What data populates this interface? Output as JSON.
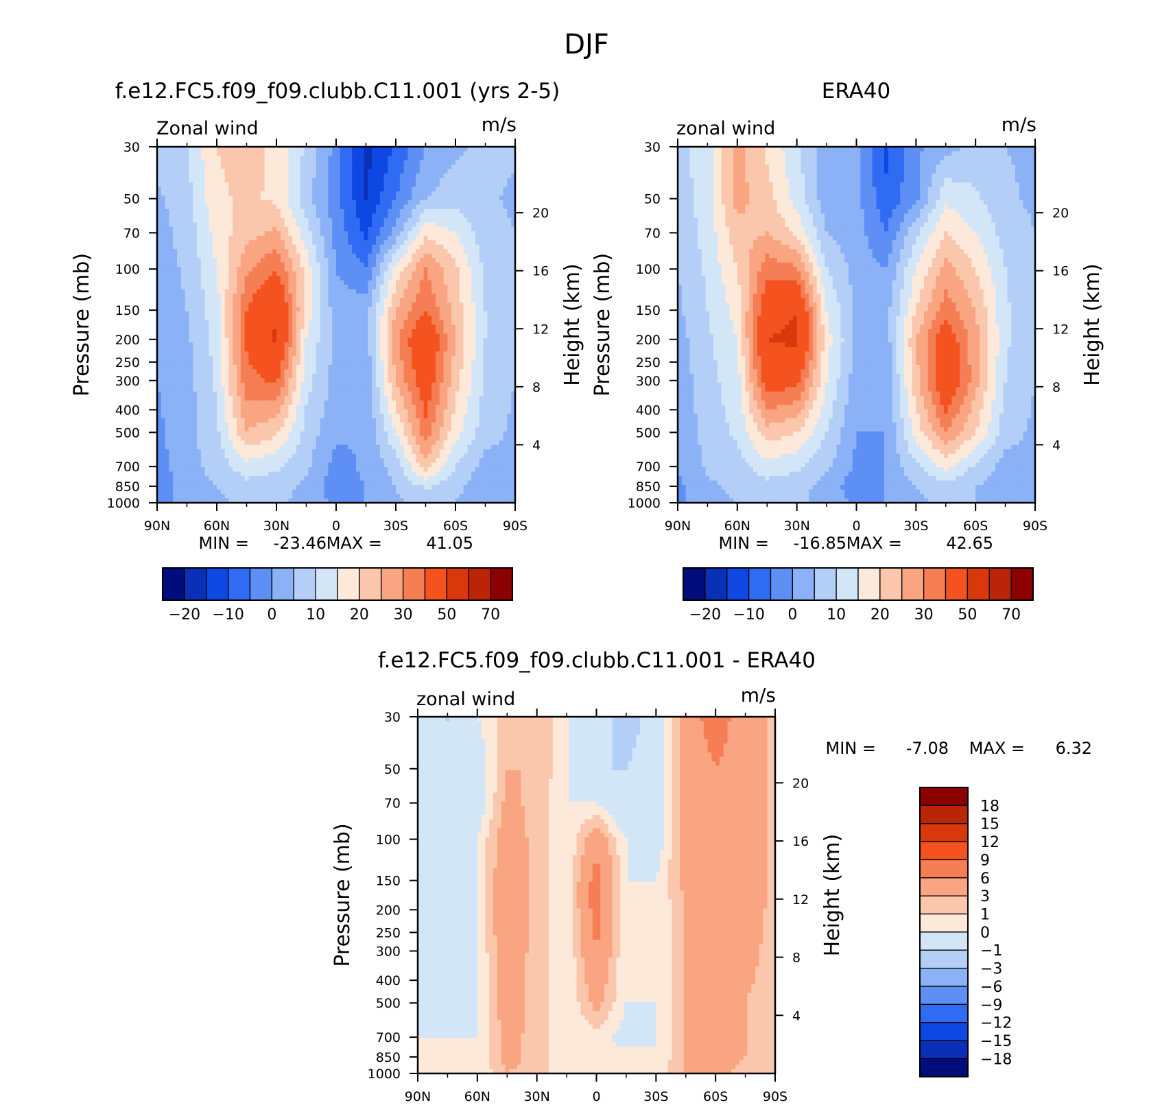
{
  "page_title": "DJF",
  "colors": {
    "warm": [
      "#fde9da",
      "#fbc7ac",
      "#f9a582",
      "#f67e54",
      "#f4531f",
      "#d8380c",
      "#b92506",
      "#8b0000"
    ],
    "cool": [
      "#d2e6f8",
      "#b4cff7",
      "#8bb1f6",
      "#5d8ff5",
      "#2f6bf3",
      "#0f47e3",
      "#0a30b8",
      "#000d7a"
    ],
    "missing": "#ffffff"
  },
  "chart_data": [
    {
      "type": "heatmap",
      "panel": "model",
      "title": "f.e12.FC5.f09_f09.clubb.C11.001 (yrs 2-5)",
      "left_label": "Zonal wind",
      "unit_label": "m/s",
      "ylabel": "Pressure (mb)",
      "y2label": "Height (km)",
      "x_ticks": [
        "90N",
        "60N",
        "30N",
        "0",
        "30S",
        "60S",
        "90S"
      ],
      "y_ticks": [
        30,
        50,
        70,
        100,
        150,
        200,
        250,
        300,
        400,
        500,
        700,
        850,
        1000
      ],
      "y2_ticks": [
        20,
        16,
        12,
        8,
        4
      ],
      "xlim": [
        90,
        -90
      ],
      "ylim": [
        1000,
        30
      ],
      "y_scale": "log",
      "stats": {
        "min_label": "MIN =",
        "min": "-23.46",
        "max_label": "MAX =",
        "max": "41.05"
      },
      "field": {
        "lat": [
          90,
          75,
          60,
          45,
          30,
          15,
          0,
          -15,
          -30,
          -45,
          -60,
          -75,
          -90
        ],
        "pressure": [
          30,
          50,
          70,
          100,
          150,
          200,
          300,
          500,
          700,
          850,
          1000
        ],
        "values": [
          [
            2,
            5,
            15,
            17,
            14,
            4,
            -7,
            -22,
            -14,
            -5,
            -1,
            1,
            1
          ],
          [
            -1,
            3,
            14,
            16,
            14,
            2,
            -8,
            -20,
            -10,
            0,
            3,
            1,
            -1
          ],
          [
            -2,
            2,
            12,
            18,
            21,
            7,
            -7,
            -16,
            -3,
            14,
            10,
            2,
            0
          ],
          [
            -3,
            1,
            10,
            24,
            30,
            13,
            -5,
            -10,
            12,
            25,
            16,
            4,
            0
          ],
          [
            -4,
            0,
            8,
            30,
            40,
            13,
            -3,
            -2,
            20,
            30,
            18,
            5,
            0
          ],
          [
            -5,
            -1,
            7,
            31,
            41,
            10,
            -2,
            -3,
            24,
            38,
            20,
            5,
            0
          ],
          [
            -5,
            -2,
            6,
            28,
            31,
            7,
            -2,
            -4,
            20,
            35,
            17,
            4,
            0
          ],
          [
            -6,
            -2,
            4,
            20,
            16,
            3,
            -4,
            -5,
            10,
            28,
            12,
            2,
            -1
          ],
          [
            -7,
            -2,
            2,
            8,
            6,
            1,
            -7,
            -4,
            2,
            18,
            5,
            -2,
            -1
          ],
          [
            -8,
            -3,
            0,
            3,
            2,
            -1,
            -8,
            -5,
            0,
            6,
            1,
            -3,
            -1
          ],
          [
            -8,
            -3,
            -1,
            1,
            1,
            -2,
            -6,
            -5,
            -1,
            2,
            0,
            -2,
            -1
          ]
        ]
      }
    },
    {
      "type": "heatmap",
      "panel": "obs",
      "title": "ERA40",
      "left_label": "zonal wind",
      "unit_label": "m/s",
      "ylabel": "Pressure (mb)",
      "y2label": "Height (km)",
      "x_ticks": [
        "90N",
        "60N",
        "30N",
        "0",
        "30S",
        "60S",
        "90S"
      ],
      "y_ticks": [
        30,
        50,
        70,
        100,
        150,
        200,
        250,
        300,
        400,
        500,
        700,
        850,
        1000
      ],
      "y2_ticks": [
        20,
        16,
        12,
        8,
        4
      ],
      "xlim": [
        90,
        -90
      ],
      "ylim": [
        1000,
        30
      ],
      "y_scale": "log",
      "stats": {
        "min_label": "MIN =",
        "min": "-16.85",
        "max_label": "MAX =",
        "max": "42.65"
      },
      "field": {
        "lat": [
          90,
          75,
          60,
          45,
          30,
          15,
          0,
          -15,
          -30,
          -45,
          -60,
          -75,
          -90
        ],
        "pressure": [
          30,
          50,
          70,
          100,
          150,
          200,
          300,
          500,
          700,
          850,
          1000
        ],
        "values": [
          [
            3,
            8,
            22,
            14,
            6,
            -3,
            -4,
            -16,
            -6,
            -2,
            2,
            0,
            -1
          ],
          [
            2,
            8,
            22,
            17,
            8,
            -3,
            -3,
            -14,
            -6,
            9,
            6,
            1,
            -1
          ],
          [
            1,
            7,
            18,
            20,
            14,
            0,
            -3,
            -10,
            4,
            15,
            10,
            3,
            0
          ],
          [
            0,
            6,
            15,
            28,
            26,
            5,
            -2,
            -5,
            10,
            22,
            15,
            5,
            0
          ],
          [
            -1,
            5,
            12,
            36,
            40,
            10,
            -1,
            -2,
            15,
            28,
            20,
            6,
            0
          ],
          [
            -2,
            4,
            10,
            40,
            42,
            12,
            -1,
            -3,
            20,
            35,
            22,
            6,
            0
          ],
          [
            -3,
            3,
            8,
            34,
            32,
            10,
            -3,
            -4,
            18,
            38,
            22,
            5,
            0
          ],
          [
            -4,
            2,
            6,
            18,
            15,
            5,
            -5,
            -5,
            12,
            25,
            15,
            2,
            -1
          ],
          [
            -5,
            1,
            3,
            8,
            6,
            1,
            -6,
            -5,
            4,
            12,
            4,
            -2,
            -1
          ],
          [
            -6,
            -1,
            1,
            3,
            2,
            -2,
            -8,
            -5,
            0,
            3,
            0,
            -2,
            -1
          ],
          [
            -6,
            -1,
            0,
            1,
            1,
            -2,
            -6,
            -5,
            -1,
            1,
            0,
            -1,
            -1
          ]
        ]
      }
    },
    {
      "type": "heatmap",
      "panel": "diff",
      "title": "f.e12.FC5.f09_f09.clubb.C11.001 - ERA40",
      "left_label": "zonal wind",
      "unit_label": "m/s",
      "ylabel": "Pressure (mb)",
      "y2label": "Height (km)",
      "x_ticks": [
        "90N",
        "60N",
        "30N",
        "0",
        "30S",
        "60S",
        "90S"
      ],
      "y_ticks": [
        30,
        50,
        70,
        100,
        150,
        200,
        250,
        300,
        400,
        500,
        700,
        850,
        1000
      ],
      "y2_ticks": [
        20,
        16,
        12,
        8,
        4
      ],
      "xlim": [
        90,
        -90
      ],
      "ylim": [
        1000,
        30
      ],
      "y_scale": "log",
      "stats": {
        "min_label": "MIN =",
        "min": "-7.08",
        "max_label": "MAX =",
        "max": "6.32"
      },
      "field": {
        "lat": [
          90,
          75,
          60,
          45,
          30,
          15,
          0,
          -15,
          -30,
          -45,
          -60,
          -75,
          -90
        ],
        "pressure": [
          30,
          50,
          70,
          100,
          150,
          200,
          300,
          500,
          700,
          850,
          1000
        ],
        "values": [
          [
            -1,
            -3,
            -1,
            0.5,
            1,
            -1,
            -2,
            -4,
            -2,
            2,
            4,
            2,
            0.5
          ],
          [
            -2,
            -3,
            -2,
            1,
            1,
            -1,
            -3,
            -3,
            -2,
            1.5,
            3,
            2,
            0.5
          ],
          [
            -2,
            -3,
            -2,
            1.5,
            0.5,
            -1,
            -1,
            -3,
            -2,
            1.5,
            3,
            2,
            0.5
          ],
          [
            -1,
            -2,
            -1,
            2,
            0.5,
            -1,
            2,
            -1,
            -2,
            2,
            3,
            2,
            0.5
          ],
          [
            -1,
            -2,
            -1,
            2.5,
            0.5,
            -1,
            4,
            -1,
            -1,
            1.5,
            3,
            2,
            0.5
          ],
          [
            -1,
            -2,
            -1,
            3,
            0.5,
            -1,
            4,
            -1,
            -1,
            1,
            2.5,
            2,
            0.5
          ],
          [
            -1,
            -2,
            -1,
            2,
            0.5,
            -1,
            3,
            -1,
            -1,
            1,
            2.5,
            1.5,
            0.5
          ],
          [
            -1,
            -2,
            -1,
            2,
            0.5,
            -1,
            1.5,
            -1,
            -1,
            1,
            2,
            1,
            0.5
          ],
          [
            -1,
            -1,
            -1,
            1.5,
            0.5,
            -1,
            -0.5,
            -1.5,
            -1,
            1,
            2,
            1,
            0.5
          ],
          [
            -1,
            -1,
            -1,
            1.5,
            0.5,
            -1,
            -1,
            -0.5,
            -1,
            1,
            2,
            1,
            0.5
          ],
          [
            -1,
            -1,
            -1,
            1,
            0.5,
            -1,
            -1,
            -0.5,
            -0.5,
            1,
            1.5,
            0.5,
            0.5
          ]
        ]
      }
    }
  ],
  "colorbars": {
    "main": {
      "thresholds": [
        -25,
        -20,
        -15,
        -10,
        -5,
        0,
        5,
        10,
        15,
        20,
        25,
        30,
        40,
        50,
        60,
        70
      ],
      "tick_labels": [
        "-20",
        "-10",
        "0",
        "10",
        "20",
        "30",
        "50",
        "70"
      ]
    },
    "diff": {
      "thresholds": [
        -18,
        -15,
        -12,
        -9,
        -6,
        -3,
        -1,
        0,
        1,
        3,
        6,
        9,
        12,
        15,
        18
      ],
      "tick_labels": [
        "18",
        "15",
        "12",
        "9",
        "6",
        "3",
        "1",
        "0",
        "-1",
        "-3",
        "-6",
        "-9",
        "-12",
        "-15",
        "-18"
      ]
    }
  }
}
